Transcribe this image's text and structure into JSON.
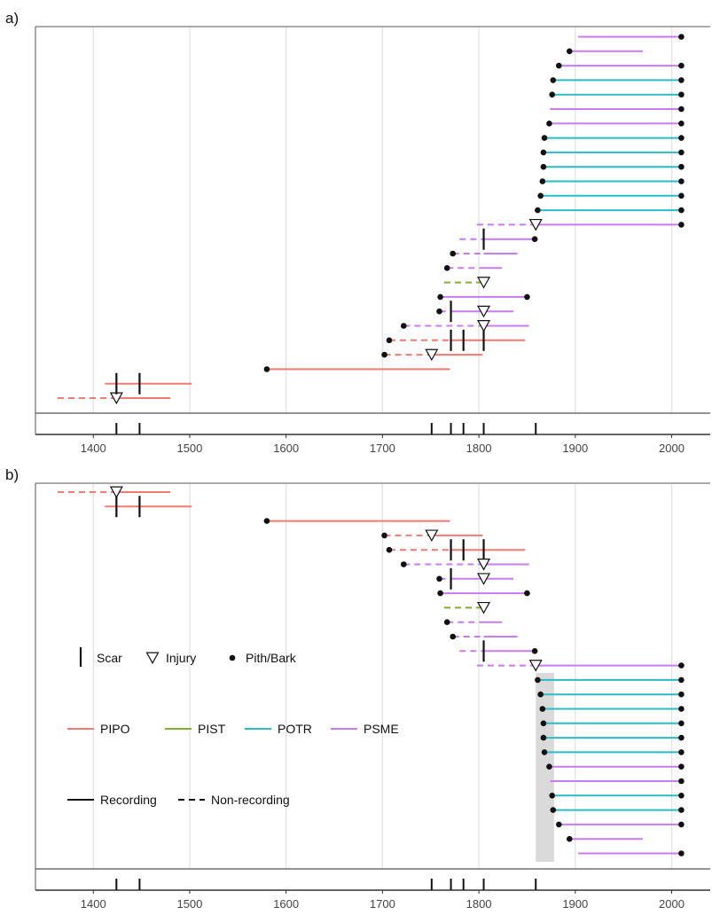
{
  "chart_data": {
    "type": "fire-history-demography",
    "x_axis": {
      "range": [
        1340,
        2040
      ],
      "ticks": [
        1400,
        1500,
        1600,
        1700,
        1800,
        1900,
        2000
      ]
    },
    "event_ticks": [
      1424,
      1448,
      1751,
      1771,
      1784,
      1805,
      1859
    ],
    "colors": {
      "PIPO": "#F07B72",
      "PIST": "#80B030",
      "POTR": "#2ABCC4",
      "PSME": "#C77CF0"
    },
    "legend": {
      "symbols": [
        {
          "symbol": "scar",
          "label": "Scar"
        },
        {
          "symbol": "injury",
          "label": "Injury"
        },
        {
          "symbol": "pith",
          "label": "Pith/Bark"
        }
      ],
      "species": [
        {
          "code": "PIPO",
          "label": "PIPO"
        },
        {
          "code": "PIST",
          "label": "PIST"
        },
        {
          "code": "POTR",
          "label": "POTR"
        },
        {
          "code": "PSME",
          "label": "PSME"
        }
      ],
      "line_types": [
        {
          "type": "solid",
          "label": "Recording"
        },
        {
          "type": "dashed",
          "label": "Non-recording"
        }
      ]
    },
    "panels": [
      {
        "label": "a)",
        "series": [
          {
            "sp": "PIPO",
            "start": 1363,
            "end": 1480,
            "ns": 1363,
            "ne": 1424,
            "inj": [
              1424
            ]
          },
          {
            "sp": "PIPO",
            "start": 1412,
            "end": 1502,
            "scars": [
              1424,
              1448
            ]
          },
          {
            "sp": "PIPO",
            "start": 1580,
            "end": 1770,
            "pith": true
          },
          {
            "sp": "PIPO",
            "start": 1702,
            "end": 1804,
            "pith": true,
            "ns": 1702,
            "ne": 1751,
            "inj": [
              1751
            ]
          },
          {
            "sp": "PIPO",
            "start": 1707,
            "end": 1848,
            "pith": true,
            "ns": 1707,
            "ne": 1771,
            "scars": [
              1771,
              1784,
              1805
            ]
          },
          {
            "sp": "PSME",
            "start": 1722,
            "end": 1852,
            "pith": true,
            "ns": 1722,
            "ne": 1805,
            "inj": [
              1805
            ]
          },
          {
            "sp": "PSME",
            "start": 1759,
            "end": 1836,
            "pith": true,
            "ns": 1759,
            "ne": 1771,
            "scars": [
              1771
            ],
            "inj": [
              1805
            ]
          },
          {
            "sp": "PSME",
            "start": 1760,
            "end": 1850,
            "pith": true,
            "bark": true
          },
          {
            "sp": "PIST",
            "start": 1764,
            "end": 1805,
            "ns": 1764,
            "ne": 1805,
            "inj": [
              1805
            ]
          },
          {
            "sp": "PSME",
            "start": 1767,
            "end": 1824,
            "pith": true,
            "ns": 1767,
            "ne": 1805
          },
          {
            "sp": "PSME",
            "start": 1773,
            "end": 1840,
            "pith": true,
            "ns": 1773,
            "ne": 1805
          },
          {
            "sp": "PSME",
            "start": 1780,
            "end": 1858,
            "bark": true,
            "ns": 1780,
            "ne": 1805,
            "scars": [
              1805
            ]
          },
          {
            "sp": "PSME",
            "start": 1798,
            "end": 2010,
            "bark": true,
            "ns": 1798,
            "ne": 1859,
            "inj": [
              1859
            ]
          },
          {
            "sp": "POTR",
            "start": 1861,
            "end": 2010,
            "pith": true,
            "bark": true
          },
          {
            "sp": "POTR",
            "start": 1864,
            "end": 2010,
            "pith": true,
            "bark": true
          },
          {
            "sp": "POTR",
            "start": 1866,
            "end": 2010,
            "pith": true,
            "bark": true
          },
          {
            "sp": "POTR",
            "start": 1867,
            "end": 2010,
            "pith": true,
            "bark": true
          },
          {
            "sp": "POTR",
            "start": 1867,
            "end": 2010,
            "pith": true,
            "bark": true
          },
          {
            "sp": "POTR",
            "start": 1868,
            "end": 2010,
            "pith": true,
            "bark": true
          },
          {
            "sp": "PSME",
            "start": 1873,
            "end": 2010,
            "pith": true,
            "bark": true
          },
          {
            "sp": "PSME",
            "start": 1874,
            "end": 2010,
            "bark": true
          },
          {
            "sp": "POTR",
            "start": 1876,
            "end": 2010,
            "pith": true,
            "bark": true
          },
          {
            "sp": "POTR",
            "start": 1877,
            "end": 2010,
            "pith": true,
            "bark": true
          },
          {
            "sp": "PSME",
            "start": 1883,
            "end": 2010,
            "pith": true,
            "bark": true
          },
          {
            "sp": "PSME",
            "start": 1894,
            "end": 1970,
            "pith": true
          },
          {
            "sp": "PSME",
            "start": 1903,
            "end": 2010,
            "bark": true
          }
        ]
      },
      {
        "label": "b)",
        "shaded_range": [
          1859,
          1878
        ],
        "series": [
          {
            "sp": "PIPO",
            "start": 1363,
            "end": 1480,
            "ns": 1363,
            "ne": 1424,
            "inj": [
              1424
            ]
          },
          {
            "sp": "PIPO",
            "start": 1412,
            "end": 1502,
            "scars": [
              1424,
              1448
            ]
          },
          {
            "sp": "PIPO",
            "start": 1580,
            "end": 1770,
            "pith": true
          },
          {
            "sp": "PIPO",
            "start": 1702,
            "end": 1804,
            "pith": true,
            "ns": 1702,
            "ne": 1751,
            "inj": [
              1751
            ]
          },
          {
            "sp": "PIPO",
            "start": 1707,
            "end": 1848,
            "pith": true,
            "ns": 1707,
            "ne": 1771,
            "scars": [
              1771,
              1784,
              1805
            ]
          },
          {
            "sp": "PSME",
            "start": 1722,
            "end": 1852,
            "pith": true,
            "ns": 1722,
            "ne": 1805,
            "inj": [
              1805
            ]
          },
          {
            "sp": "PSME",
            "start": 1759,
            "end": 1836,
            "pith": true,
            "ns": 1759,
            "ne": 1771,
            "scars": [
              1771
            ],
            "inj": [
              1805
            ]
          },
          {
            "sp": "PSME",
            "start": 1760,
            "end": 1850,
            "pith": true,
            "bark": true
          },
          {
            "sp": "PIST",
            "start": 1764,
            "end": 1805,
            "ns": 1764,
            "ne": 1805,
            "inj": [
              1805
            ]
          },
          {
            "sp": "PSME",
            "start": 1767,
            "end": 1824,
            "pith": true,
            "ns": 1767,
            "ne": 1805
          },
          {
            "sp": "PSME",
            "start": 1773,
            "end": 1840,
            "pith": true,
            "ns": 1773,
            "ne": 1805
          },
          {
            "sp": "PSME",
            "start": 1780,
            "end": 1858,
            "bark": true,
            "ns": 1780,
            "ne": 1805,
            "scars": [
              1805
            ]
          },
          {
            "sp": "PSME",
            "start": 1798,
            "end": 2010,
            "bark": true,
            "ns": 1798,
            "ne": 1859,
            "inj": [
              1859
            ]
          },
          {
            "sp": "POTR",
            "start": 1861,
            "end": 2010,
            "pith": true,
            "bark": true
          },
          {
            "sp": "POTR",
            "start": 1864,
            "end": 2010,
            "pith": true,
            "bark": true
          },
          {
            "sp": "POTR",
            "start": 1866,
            "end": 2010,
            "pith": true,
            "bark": true
          },
          {
            "sp": "POTR",
            "start": 1867,
            "end": 2010,
            "pith": true,
            "bark": true
          },
          {
            "sp": "POTR",
            "start": 1867,
            "end": 2010,
            "pith": true,
            "bark": true
          },
          {
            "sp": "POTR",
            "start": 1868,
            "end": 2010,
            "pith": true,
            "bark": true
          },
          {
            "sp": "PSME",
            "start": 1873,
            "end": 2010,
            "pith": true,
            "bark": true
          },
          {
            "sp": "PSME",
            "start": 1874,
            "end": 2010,
            "bark": true
          },
          {
            "sp": "POTR",
            "start": 1876,
            "end": 2010,
            "pith": true,
            "bark": true
          },
          {
            "sp": "POTR",
            "start": 1877,
            "end": 2010,
            "pith": true,
            "bark": true
          },
          {
            "sp": "PSME",
            "start": 1883,
            "end": 2010,
            "pith": true,
            "bark": true
          },
          {
            "sp": "PSME",
            "start": 1894,
            "end": 1970,
            "pith": true
          },
          {
            "sp": "PSME",
            "start": 1903,
            "end": 2010,
            "bark": true
          }
        ]
      }
    ]
  }
}
